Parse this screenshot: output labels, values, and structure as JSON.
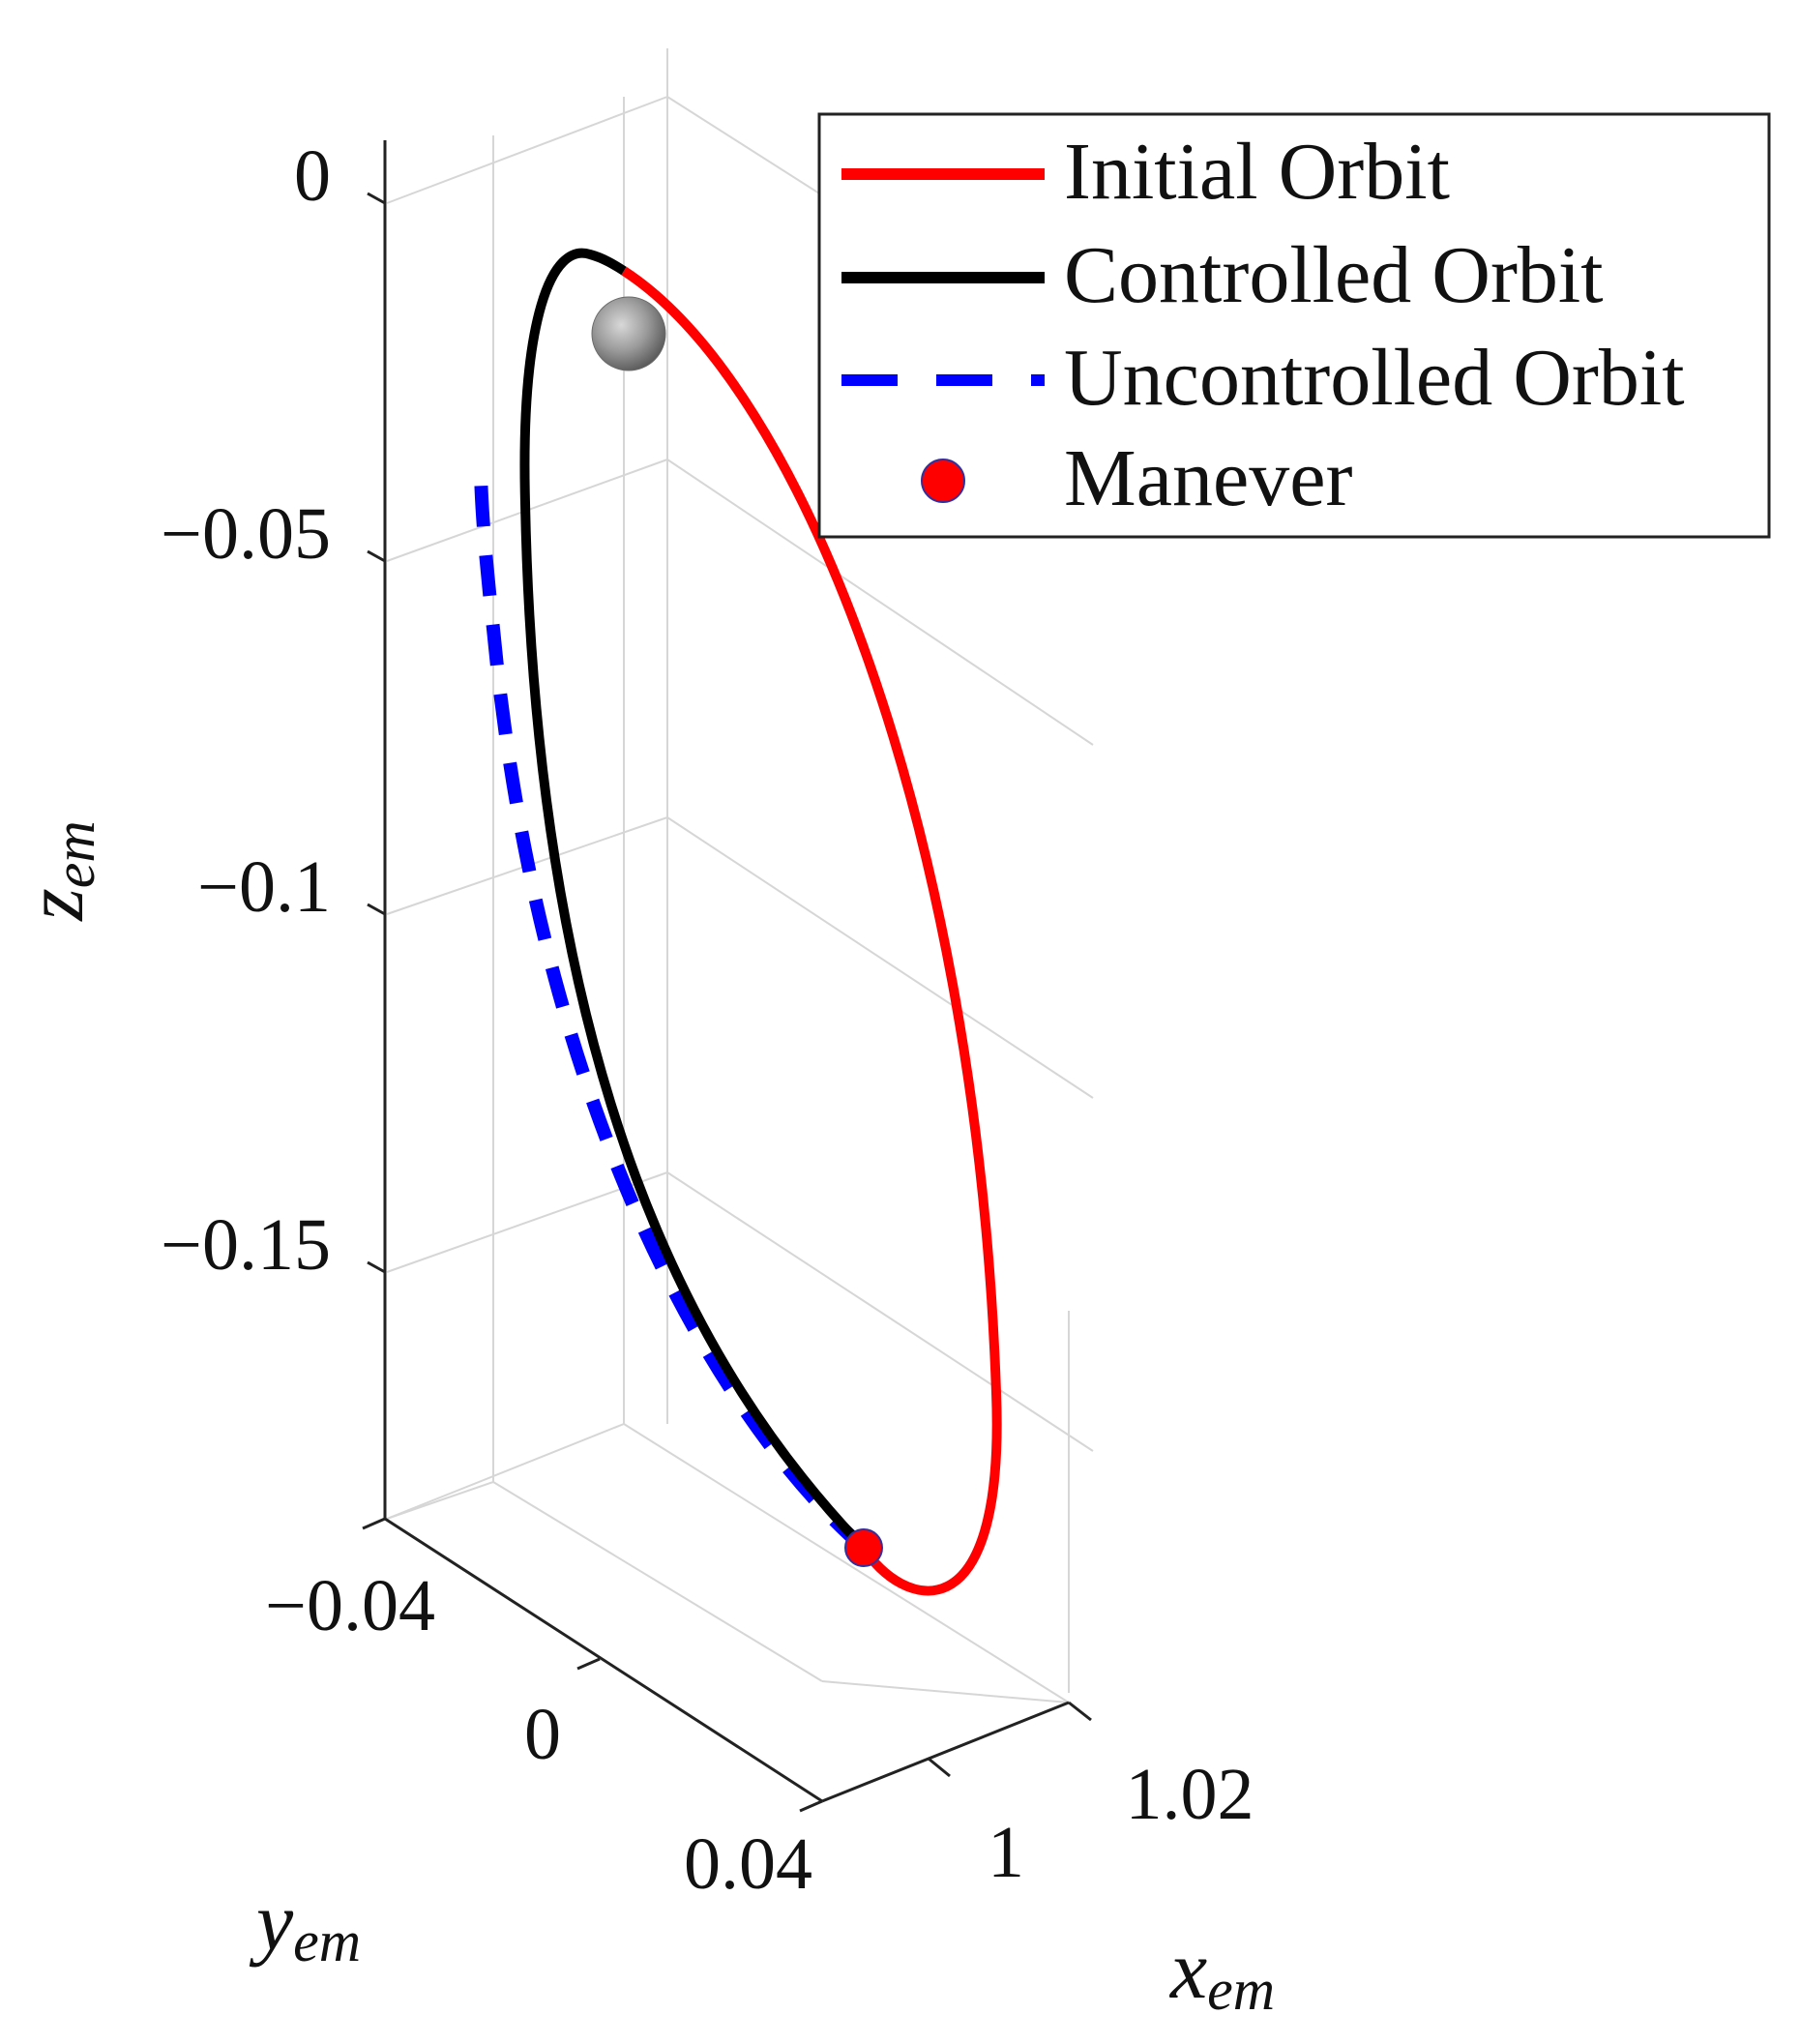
{
  "chart_data": {
    "type": "line",
    "dimensions": "3d",
    "title": "",
    "axes": {
      "x": {
        "label": "x",
        "label_sub": "em",
        "ticks": [
          "1",
          "1.02"
        ],
        "tick_values": [
          1.0,
          1.02
        ]
      },
      "y": {
        "label": "y",
        "label_sub": "em",
        "ticks": [
          "−0.04",
          "0",
          "0.04"
        ],
        "tick_values": [
          -0.04,
          0,
          0.04
        ]
      },
      "z": {
        "label": "z",
        "label_sub": "em",
        "ticks": [
          "0",
          "−0.05",
          "−0.1",
          "−0.15"
        ],
        "tick_values": [
          0,
          -0.05,
          -0.1,
          -0.15
        ]
      }
    },
    "grid": true,
    "legend_position": "top-right",
    "series": [
      {
        "name": "Initial Orbit",
        "color": "#ff0000",
        "style": "solid",
        "description": "Closed orbit arc from the top of the orbit down its right side to the lowest point near the maneuver",
        "z_range_approx": [
          -0.18,
          -0.01
        ]
      },
      {
        "name": "Controlled Orbit",
        "color": "#000000",
        "style": "solid",
        "description": "Arc from the maneuver point up the left side to the top of the orbit",
        "z_range_approx": [
          -0.18,
          -0.01
        ]
      },
      {
        "name": "Uncontrolled Orbit",
        "color": "#0000ff",
        "style": "dashed",
        "description": "Drifting trajectory from the maneuver point upward, outside the controlled arc",
        "z_range_approx": [
          -0.18,
          -0.04
        ]
      },
      {
        "name": "Manever",
        "color": "#ff0000",
        "style": "marker",
        "description": "Maneuver point at the bottom of the orbit",
        "z_approx": -0.18
      }
    ],
    "annotations": [
      {
        "name": "moon",
        "description": "Grey moon sphere near the top of the orbit"
      }
    ]
  }
}
